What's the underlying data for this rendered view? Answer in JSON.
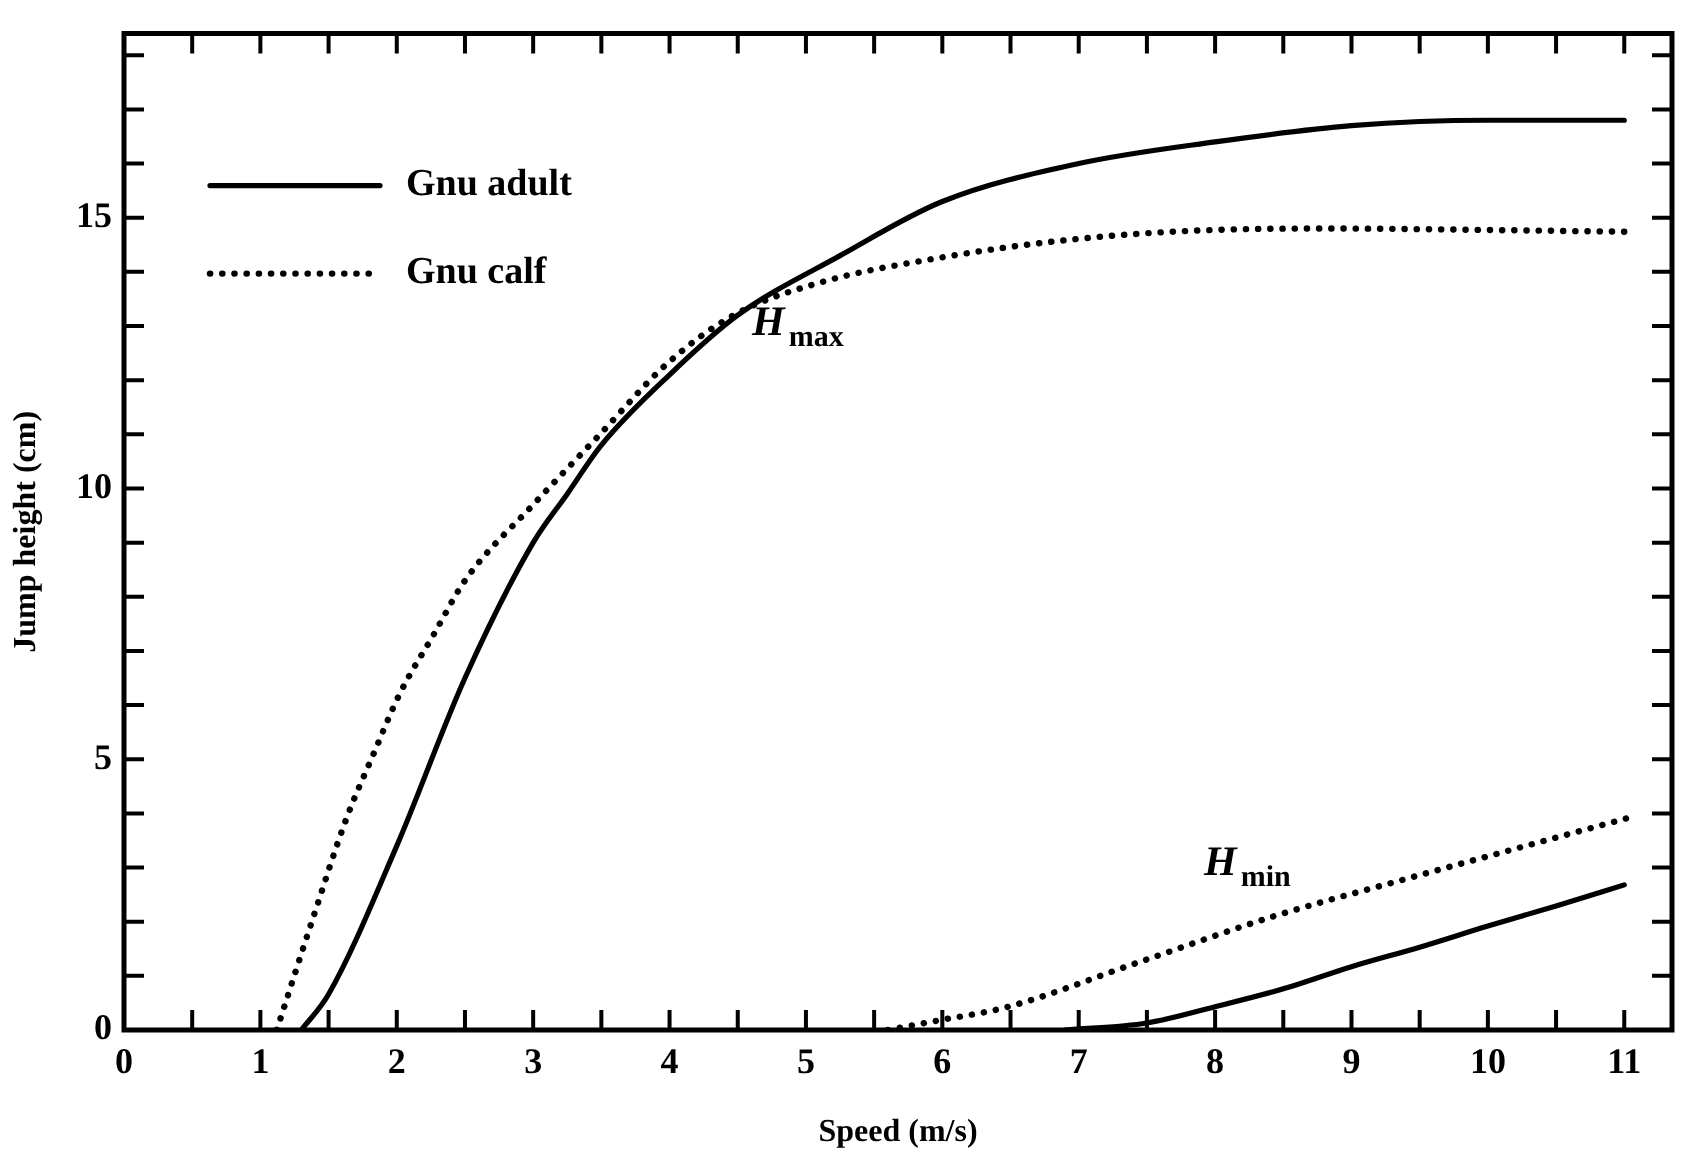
{
  "chart_data": {
    "type": "line",
    "xlabel": "Speed (m/s)",
    "ylabel": "Jump height (cm)",
    "xlim": [
      0,
      11.35
    ],
    "ylim": [
      0,
      18.4
    ],
    "xticks": [
      0,
      {
        "value": 0.5,
        "label": null
      },
      1,
      {
        "value": 1.5,
        "label": null
      },
      2,
      {
        "value": 2.5,
        "label": null
      },
      3,
      {
        "value": 3.5,
        "label": null
      },
      4,
      {
        "value": 4.5,
        "label": null
      },
      5,
      {
        "value": 5.5,
        "label": null
      },
      6,
      {
        "value": 6.5,
        "label": null
      },
      7,
      {
        "value": 7.5,
        "label": null
      },
      8,
      {
        "value": 8.5,
        "label": null
      },
      9,
      {
        "value": 9.5,
        "label": null
      },
      10,
      {
        "value": 10.5,
        "label": null
      },
      11
    ],
    "yticks": [
      0,
      {
        "value": 1,
        "label": null
      },
      {
        "value": 2,
        "label": null
      },
      {
        "value": 3,
        "label": null
      },
      {
        "value": 4,
        "label": null
      },
      5,
      {
        "value": 6,
        "label": null
      },
      {
        "value": 7,
        "label": null
      },
      {
        "value": 8,
        "label": null
      },
      {
        "value": 9,
        "label": null
      },
      10,
      {
        "value": 11,
        "label": null
      },
      {
        "value": 12,
        "label": null
      },
      {
        "value": 13,
        "label": null
      },
      {
        "value": 14,
        "label": null
      },
      15,
      {
        "value": 16,
        "label": null
      },
      {
        "value": 17,
        "label": null
      },
      {
        "value": 18,
        "label": null
      }
    ],
    "legend": "top left",
    "marker": "none",
    "series": [
      {
        "name": "Gnu adult",
        "color": "#000000",
        "line_style": "solid",
        "x": [
          1.3,
          1.5,
          2,
          2.5,
          3,
          3.25,
          3.5,
          4,
          4.5,
          5.25,
          6,
          7,
          8,
          9,
          10,
          11
        ],
        "values": [
          0,
          0.66,
          3.4,
          6.5,
          9.0,
          9.9,
          10.8,
          12.1,
          13.2,
          14.3,
          15.3,
          16.0,
          16.4,
          16.7,
          16.8,
          16.8
        ]
      },
      {
        "name": "Gnu calf",
        "color": "#000000",
        "line_style": "dotted",
        "x": [
          1.12,
          1.39,
          1.63,
          1.83,
          2.02,
          2.27,
          2.5,
          3,
          3.49,
          3.98,
          4.47,
          5.1,
          5.98,
          6.96,
          7.94,
          8.9,
          10.1,
          11.04
        ],
        "values": [
          0,
          2.1,
          3.9,
          5.1,
          6.2,
          7.3,
          8.3,
          9.7,
          11.0,
          12.3,
          13.2,
          13.8,
          14.26,
          14.6,
          14.77,
          14.8,
          14.77,
          14.74
        ]
      },
      {
        "color": "#000000",
        "line_style": "solid",
        "x": [
          6.9,
          7.5,
          8,
          8.5,
          9,
          9.5,
          10,
          10.5,
          11
        ],
        "values": [
          0,
          0.13,
          0.43,
          0.76,
          1.17,
          1.53,
          1.92,
          2.29,
          2.68
        ]
      },
      {
        "color": "#000000",
        "line_style": "dotted",
        "x": [
          5.6,
          5.98,
          6.47,
          7.45,
          8.43,
          9.4,
          10.38,
          11.02
        ],
        "values": [
          0,
          0.18,
          0.42,
          1.26,
          2.1,
          2.79,
          3.47,
          3.91
        ]
      }
    ],
    "annotations": [
      "H$_{max}$",
      "H$_{min}$"
    ]
  }
}
